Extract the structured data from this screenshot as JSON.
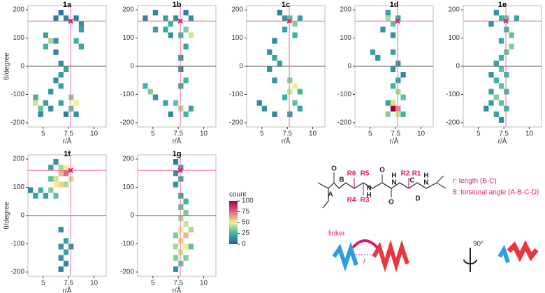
{
  "chart_data": [
    {
      "type": "heatmap",
      "title": "1a",
      "xlabel": "r/Å",
      "ylabel": "θ/degree",
      "xlim": [
        3.5,
        11.2
      ],
      "ylim": [
        -215,
        215
      ],
      "xticks": [
        5,
        7.5,
        10
      ],
      "yticks": [
        -200,
        -100,
        0,
        100,
        200
      ],
      "bin_size": [
        0.5,
        20
      ],
      "ref_r": 7.7,
      "ref_theta": 160,
      "cells": [
        [
          6.25,
          170,
          10
        ],
        [
          6.75,
          190,
          8
        ],
        [
          7.25,
          170,
          12
        ],
        [
          8.25,
          170,
          10
        ],
        [
          8.75,
          150,
          15
        ],
        [
          8.75,
          130,
          20
        ],
        [
          5.25,
          110,
          20
        ],
        [
          5.75,
          90,
          40
        ],
        [
          5.25,
          70,
          25
        ],
        [
          6.25,
          90,
          15
        ],
        [
          8.25,
          90,
          25
        ],
        [
          8.75,
          70,
          20
        ],
        [
          6.25,
          50,
          12
        ],
        [
          6.75,
          10,
          15
        ],
        [
          7.25,
          -10,
          20
        ],
        [
          6.75,
          -30,
          18
        ],
        [
          6.25,
          -50,
          15
        ],
        [
          6.75,
          -70,
          20
        ],
        [
          5.75,
          -90,
          15
        ],
        [
          4.25,
          -110,
          25
        ],
        [
          4.25,
          -130,
          45
        ],
        [
          4.75,
          -150,
          30
        ],
        [
          5.25,
          -130,
          20
        ],
        [
          5.75,
          -150,
          15
        ],
        [
          6.75,
          -130,
          20
        ],
        [
          7.75,
          -110,
          35
        ],
        [
          8.25,
          -130,
          50
        ],
        [
          7.75,
          -150,
          30
        ],
        [
          8.25,
          -170,
          15
        ],
        [
          7.25,
          -170,
          10
        ],
        [
          4.75,
          -170,
          12
        ]
      ]
    },
    {
      "type": "heatmap",
      "title": "1b",
      "xlabel": "r/Å",
      "xlim": [
        3.5,
        11.2
      ],
      "ylim": [
        -215,
        215
      ],
      "xticks": [
        5,
        7.5,
        10
      ],
      "yticks": [
        -200,
        -100,
        0,
        100,
        200
      ],
      "bin_size": [
        0.5,
        20
      ],
      "ref_r": 7.7,
      "ref_theta": 160,
      "cells": [
        [
          4.25,
          170,
          10
        ],
        [
          5.25,
          190,
          12
        ],
        [
          6.25,
          170,
          20
        ],
        [
          6.75,
          150,
          25
        ],
        [
          7.25,
          170,
          15
        ],
        [
          8.25,
          190,
          10
        ],
        [
          8.75,
          170,
          15
        ],
        [
          5.25,
          130,
          18
        ],
        [
          6.25,
          130,
          22
        ],
        [
          8.25,
          130,
          35
        ],
        [
          8.75,
          110,
          45
        ],
        [
          7.75,
          110,
          25
        ],
        [
          6.75,
          110,
          15
        ],
        [
          8.25,
          70,
          20
        ],
        [
          7.75,
          30,
          15
        ],
        [
          7.75,
          -10,
          12
        ],
        [
          8.25,
          -50,
          25
        ],
        [
          7.75,
          -70,
          20
        ],
        [
          4.25,
          -70,
          25
        ],
        [
          4.75,
          -90,
          35
        ],
        [
          5.25,
          -110,
          15
        ],
        [
          6.25,
          -130,
          20
        ],
        [
          7.25,
          -130,
          30
        ],
        [
          7.75,
          -150,
          40
        ],
        [
          8.25,
          -170,
          25
        ],
        [
          8.75,
          -150,
          20
        ],
        [
          6.75,
          -170,
          12
        ]
      ]
    },
    {
      "type": "heatmap",
      "title": "1c",
      "xlabel": "r/Å",
      "xlim": [
        3.5,
        11.2
      ],
      "ylim": [
        -215,
        215
      ],
      "xticks": [
        5,
        7.5,
        10
      ],
      "yticks": [
        -200,
        -100,
        0,
        100,
        200
      ],
      "bin_size": [
        0.5,
        20
      ],
      "ref_r": 7.7,
      "ref_theta": 160,
      "cells": [
        [
          6.75,
          190,
          10
        ],
        [
          7.25,
          170,
          15
        ],
        [
          7.75,
          170,
          30
        ],
        [
          8.25,
          150,
          35
        ],
        [
          8.75,
          170,
          20
        ],
        [
          7.25,
          130,
          20
        ],
        [
          8.25,
          110,
          25
        ],
        [
          6.25,
          90,
          12
        ],
        [
          5.75,
          50,
          15
        ],
        [
          6.25,
          30,
          20
        ],
        [
          6.75,
          10,
          18
        ],
        [
          5.75,
          -10,
          15
        ],
        [
          6.25,
          -50,
          15
        ],
        [
          7.75,
          -50,
          35
        ],
        [
          8.25,
          -70,
          50
        ],
        [
          7.75,
          -90,
          45
        ],
        [
          8.75,
          -90,
          25
        ],
        [
          7.25,
          -110,
          25
        ],
        [
          8.25,
          -130,
          30
        ],
        [
          4.75,
          -130,
          12
        ],
        [
          5.25,
          -150,
          15
        ],
        [
          6.25,
          -170,
          12
        ],
        [
          7.75,
          -170,
          15
        ],
        [
          8.75,
          -150,
          20
        ]
      ]
    },
    {
      "type": "heatmap",
      "title": "1d",
      "xlabel": "r/Å",
      "xlim": [
        3.5,
        11.2
      ],
      "ylim": [
        -215,
        215
      ],
      "xticks": [
        5,
        7.5,
        10
      ],
      "yticks": [
        -200,
        -100,
        0,
        100,
        200
      ],
      "bin_size": [
        0.5,
        20
      ],
      "ref_r": 7.7,
      "ref_theta": 160,
      "cells": [
        [
          6.75,
          170,
          40
        ],
        [
          7.25,
          150,
          30
        ],
        [
          6.75,
          190,
          20
        ],
        [
          7.75,
          170,
          20
        ],
        [
          6.25,
          130,
          15
        ],
        [
          7.25,
          110,
          15
        ],
        [
          5.25,
          50,
          20
        ],
        [
          5.75,
          30,
          15
        ],
        [
          7.25,
          50,
          20
        ],
        [
          7.75,
          10,
          15
        ],
        [
          7.25,
          -10,
          15
        ],
        [
          7.75,
          -50,
          20
        ],
        [
          8.25,
          -30,
          12
        ],
        [
          7.25,
          -70,
          25
        ],
        [
          7.75,
          -90,
          40
        ],
        [
          8.25,
          -110,
          30
        ],
        [
          7.25,
          -130,
          55
        ],
        [
          7.25,
          -150,
          100
        ],
        [
          7.75,
          -150,
          70
        ],
        [
          7.75,
          -170,
          45
        ],
        [
          6.75,
          -170,
          35
        ],
        [
          8.25,
          -170,
          25
        ],
        [
          6.75,
          -130,
          20
        ]
      ]
    },
    {
      "type": "heatmap",
      "title": "1e",
      "xlabel": "r/Å",
      "xlim": [
        3.5,
        11.2
      ],
      "ylim": [
        -215,
        215
      ],
      "xticks": [
        5,
        7.5,
        10
      ],
      "yticks": [
        -200,
        -100,
        0,
        100,
        200
      ],
      "bin_size": [
        0.5,
        20
      ],
      "ref_r": 7.7,
      "ref_theta": 160,
      "cells": [
        [
          6.75,
          190,
          15
        ],
        [
          7.25,
          170,
          25
        ],
        [
          7.75,
          170,
          30
        ],
        [
          8.75,
          170,
          20
        ],
        [
          6.25,
          150,
          15
        ],
        [
          7.75,
          130,
          25
        ],
        [
          8.25,
          110,
          30
        ],
        [
          7.25,
          90,
          20
        ],
        [
          8.25,
          70,
          35
        ],
        [
          7.75,
          50,
          30
        ],
        [
          7.25,
          30,
          25
        ],
        [
          6.75,
          10,
          20
        ],
        [
          7.25,
          -10,
          30
        ],
        [
          7.75,
          -30,
          25
        ],
        [
          6.25,
          -30,
          15
        ],
        [
          6.75,
          -50,
          25
        ],
        [
          7.25,
          -70,
          30
        ],
        [
          6.25,
          -90,
          20
        ],
        [
          7.75,
          -90,
          25
        ],
        [
          6.75,
          -110,
          35
        ],
        [
          7.25,
          -130,
          30
        ],
        [
          6.25,
          -130,
          20
        ],
        [
          7.75,
          -150,
          25
        ],
        [
          6.75,
          -170,
          20
        ],
        [
          7.25,
          -190,
          12
        ],
        [
          5.75,
          -150,
          15
        ]
      ]
    },
    {
      "type": "heatmap",
      "title": "1f",
      "xlabel": "r/Å",
      "ylabel": "θ/degree",
      "xlim": [
        3.5,
        11.2
      ],
      "ylim": [
        -215,
        215
      ],
      "xticks": [
        5,
        7.5,
        10
      ],
      "yticks": [
        -200,
        -100,
        0,
        100,
        200
      ],
      "bin_size": [
        0.5,
        20
      ],
      "ref_r": 7.7,
      "ref_theta": 160,
      "cells": [
        [
          5.75,
          170,
          20
        ],
        [
          6.25,
          190,
          15
        ],
        [
          6.75,
          170,
          40
        ],
        [
          7.25,
          170,
          50
        ],
        [
          6.75,
          150,
          60
        ],
        [
          7.25,
          150,
          75
        ],
        [
          7.75,
          130,
          45
        ],
        [
          6.25,
          130,
          45
        ],
        [
          5.75,
          130,
          30
        ],
        [
          6.25,
          110,
          50
        ],
        [
          6.75,
          110,
          55
        ],
        [
          7.25,
          110,
          40
        ],
        [
          5.75,
          90,
          35
        ],
        [
          6.25,
          70,
          30
        ],
        [
          4.75,
          90,
          25
        ],
        [
          4.25,
          70,
          20
        ],
        [
          3.75,
          90,
          12
        ],
        [
          5.25,
          70,
          20
        ],
        [
          6.75,
          -50,
          15
        ],
        [
          7.25,
          -90,
          20
        ],
        [
          6.75,
          -110,
          15
        ],
        [
          7.25,
          -130,
          20
        ],
        [
          6.75,
          -150,
          15
        ],
        [
          7.25,
          -170,
          12
        ],
        [
          7.75,
          -110,
          15
        ],
        [
          6.75,
          -190,
          10
        ]
      ]
    },
    {
      "type": "heatmap",
      "title": "1g",
      "xlabel": "r/Å",
      "xlim": [
        3.5,
        11.2
      ],
      "ylim": [
        -215,
        215
      ],
      "xticks": [
        5,
        7.5,
        10
      ],
      "yticks": [
        -200,
        -100,
        0,
        100,
        200
      ],
      "bin_size": [
        0.5,
        20
      ],
      "ref_r": 7.7,
      "ref_theta": 160,
      "cells": [
        [
          7.25,
          190,
          10
        ],
        [
          7.75,
          170,
          20
        ],
        [
          7.25,
          150,
          15
        ],
        [
          7.75,
          130,
          20
        ],
        [
          7.25,
          110,
          15
        ],
        [
          7.75,
          70,
          20
        ],
        [
          8.25,
          50,
          25
        ],
        [
          7.75,
          30,
          30
        ],
        [
          8.25,
          10,
          35
        ],
        [
          7.75,
          -10,
          40
        ],
        [
          8.25,
          -30,
          45
        ],
        [
          7.75,
          -50,
          50
        ],
        [
          8.25,
          -70,
          60
        ],
        [
          8.75,
          -50,
          40
        ],
        [
          7.25,
          -70,
          35
        ],
        [
          7.75,
          -90,
          55
        ],
        [
          8.25,
          -110,
          50
        ],
        [
          7.25,
          -110,
          40
        ],
        [
          7.75,
          -130,
          45
        ],
        [
          8.75,
          -110,
          30
        ],
        [
          7.25,
          -150,
          35
        ],
        [
          7.75,
          -170,
          30
        ],
        [
          8.25,
          -150,
          35
        ],
        [
          7.25,
          -190,
          15
        ]
      ]
    }
  ],
  "colorbar": {
    "title": "count",
    "lim": [
      0,
      100
    ],
    "ticks": [
      0,
      25,
      50,
      75,
      100
    ],
    "colors": [
      "#2b5a9e",
      "#3cb4a2",
      "#f2ee8c",
      "#e2668c",
      "#a0003a"
    ]
  },
  "diagram": {
    "legend": [
      "r: length (B-C)",
      "θ: torsional angle (A-B-C-D)"
    ],
    "atoms": [
      "A",
      "B",
      "C",
      "D",
      "R6",
      "R5",
      "R4",
      "R3",
      "R2",
      "R1",
      "O",
      "O",
      "O",
      "N",
      "H",
      "N",
      "H",
      "N",
      "H"
    ],
    "linker": "linker",
    "r": "r",
    "rotation": "90°"
  }
}
